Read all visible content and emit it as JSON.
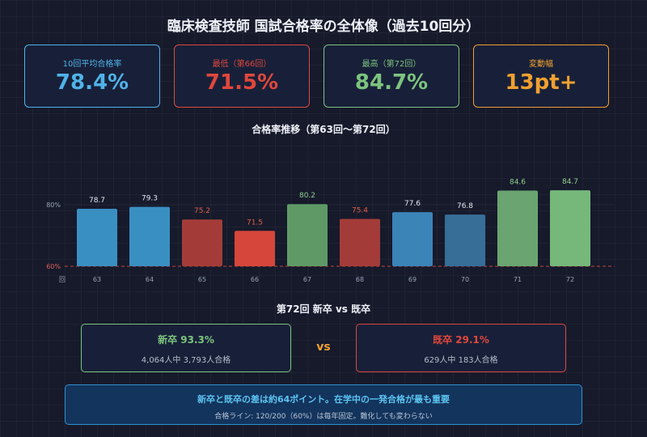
{
  "title": "臨床検査技師 国試合格率の全体像（過去10回分）",
  "kpis": [
    {
      "label": "10回平均合格率",
      "value": "78.4%",
      "color": "#4fb3e8"
    },
    {
      "label": "最低（第66回）",
      "value": "71.5%",
      "color": "#e0473c"
    },
    {
      "label": "最高（第72回）",
      "value": "84.7%",
      "color": "#7cc47e"
    },
    {
      "label": "変動幅",
      "value": "13pt+",
      "color": "#f0a030"
    }
  ],
  "chart_data": {
    "type": "bar",
    "title": "合格率推移（第63回〜第72回）",
    "xlabel": "回",
    "categories": [
      "63",
      "64",
      "65",
      "66",
      "67",
      "68",
      "69",
      "70",
      "71",
      "72"
    ],
    "values": [
      78.7,
      79.3,
      75.2,
      71.5,
      80.2,
      75.4,
      77.6,
      76.8,
      84.6,
      84.7
    ],
    "colors": [
      "#3a8fc2",
      "#3a8fc2",
      "#a33c39",
      "#d6463b",
      "#5f9a66",
      "#a33c39",
      "#3a84b8",
      "#366e98",
      "#6aa471",
      "#75b87a"
    ],
    "label_colors": [
      "#e6e9f2",
      "#e6e9f2",
      "#e06048",
      "#e06048",
      "#8fd08f",
      "#e06048",
      "#e6e9f2",
      "#e6e9f2",
      "#8fd08f",
      "#8fd08f"
    ],
    "ylim": [
      60,
      86
    ],
    "reference_lines": [
      {
        "value": 80,
        "label": "80%"
      },
      {
        "value": 60,
        "label": "60%"
      }
    ]
  },
  "comparison": {
    "title": "第72回 新卒 vs 既卒",
    "new": {
      "head": "新卒 93.3%",
      "sub": "4,064人中 3,793人合格"
    },
    "vs": "vs",
    "old": {
      "head": "既卒 29.1%",
      "sub": "629人中 183人合格"
    }
  },
  "note": {
    "head": "新卒と既卒の差は約64ポイント。在学中の一発合格が最も重要",
    "sub": "合格ライン: 120/200（60%）は毎年固定。難化しても変わらない"
  }
}
